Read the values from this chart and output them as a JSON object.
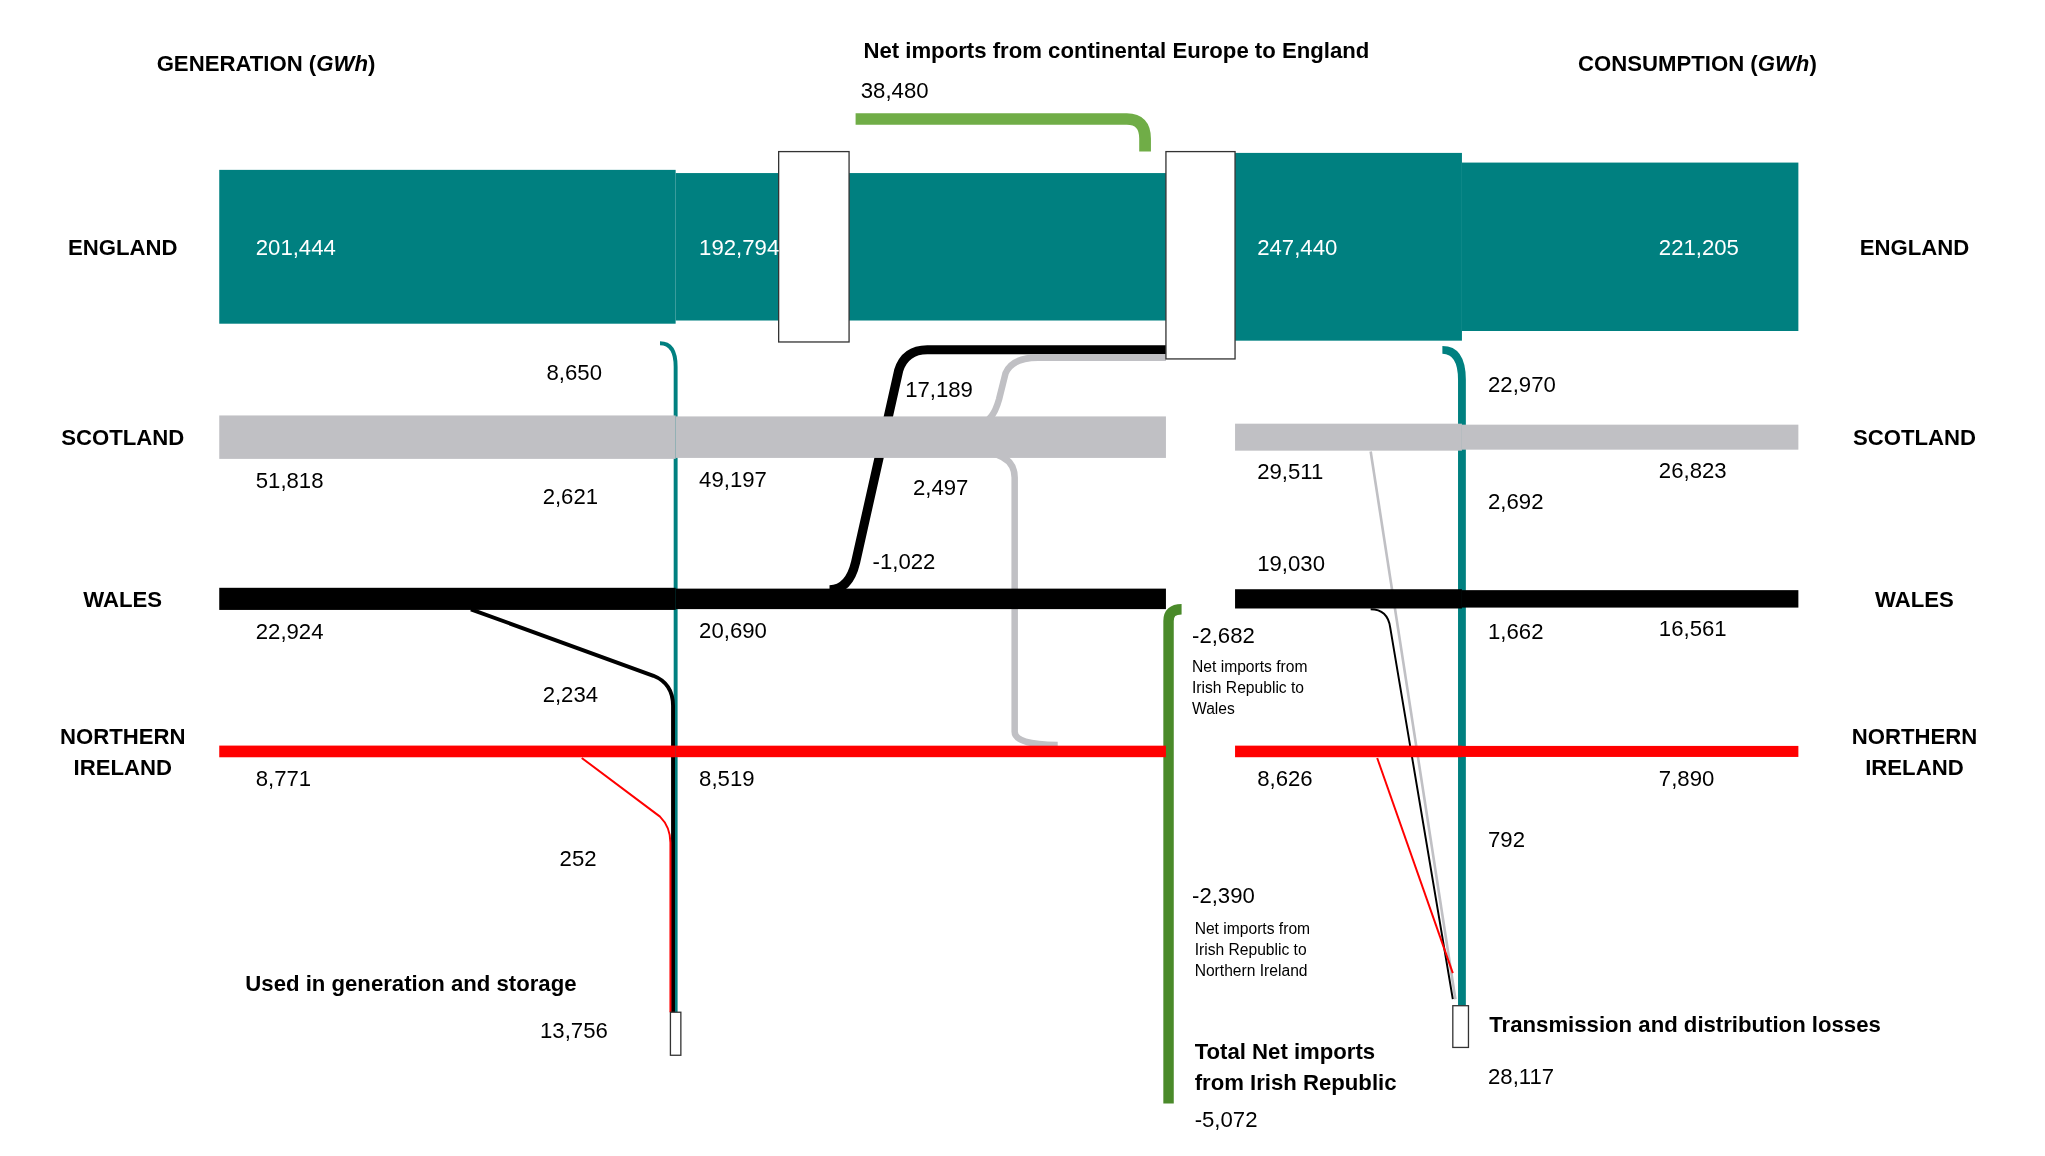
{
  "chart_data": {
    "type": "other",
    "categories": [
      "ENGLAND",
      "SCOTLAND",
      "WALES",
      "NORTHERN IRELAND"
    ],
    "colors": [
      "#008080",
      "#c0c0c4",
      "#000000",
      "#ff0000"
    ],
    "series": [
      {
        "values": [
          201444,
          51818,
          22924,
          8771
        ],
        "value_labels": [
          "201,444",
          "51,818",
          "22,924",
          "8,771"
        ]
      },
      {
        "values": [
          192794,
          49197,
          20690,
          8519
        ],
        "value_labels": [
          "192,794",
          "49,197",
          "20,690",
          "8,519"
        ]
      },
      {
        "values": [
          247440,
          29511,
          19030,
          8626
        ],
        "value_labels": [
          "247,440",
          "29,511",
          "19,030",
          "8,626"
        ]
      },
      {
        "values": [
          221205,
          26823,
          16561,
          7890
        ],
        "value_labels": [
          "221,205",
          "26,823",
          "16,561",
          "7,890"
        ]
      }
    ],
    "annotations": [
      "GENERATION (GWh)",
      "CONSUMPTION (GWh)",
      "Net imports from continental Europe to England",
      "38,480",
      "8,650",
      "17,189",
      "22,970",
      "2,621",
      "2,497",
      "2,692",
      "-1,022",
      "-2,682",
      "Net imports from\nIrish Republic to\nWales",
      "1,662",
      "2,234",
      "252",
      "792",
      "-2,390",
      "Net imports from\nIrish Republic to\nNorthern Ireland",
      "Used in generation and storage",
      "13,756",
      "Transmission and distribution losses",
      "28,117",
      "Total Net imports\nfrom Irish Republic",
      "-5,072"
    ]
  }
}
